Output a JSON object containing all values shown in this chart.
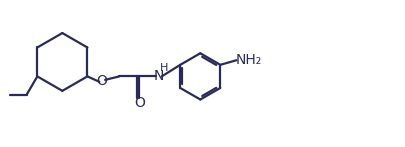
{
  "line_color": "#2a2a5a",
  "bg_color": "#ffffff",
  "line_width": 1.6,
  "font_size": 10,
  "figsize": [
    4.06,
    1.47
  ],
  "dpi": 100,
  "xlim": [
    0,
    10.5
  ],
  "ylim": [
    0,
    3.7
  ]
}
